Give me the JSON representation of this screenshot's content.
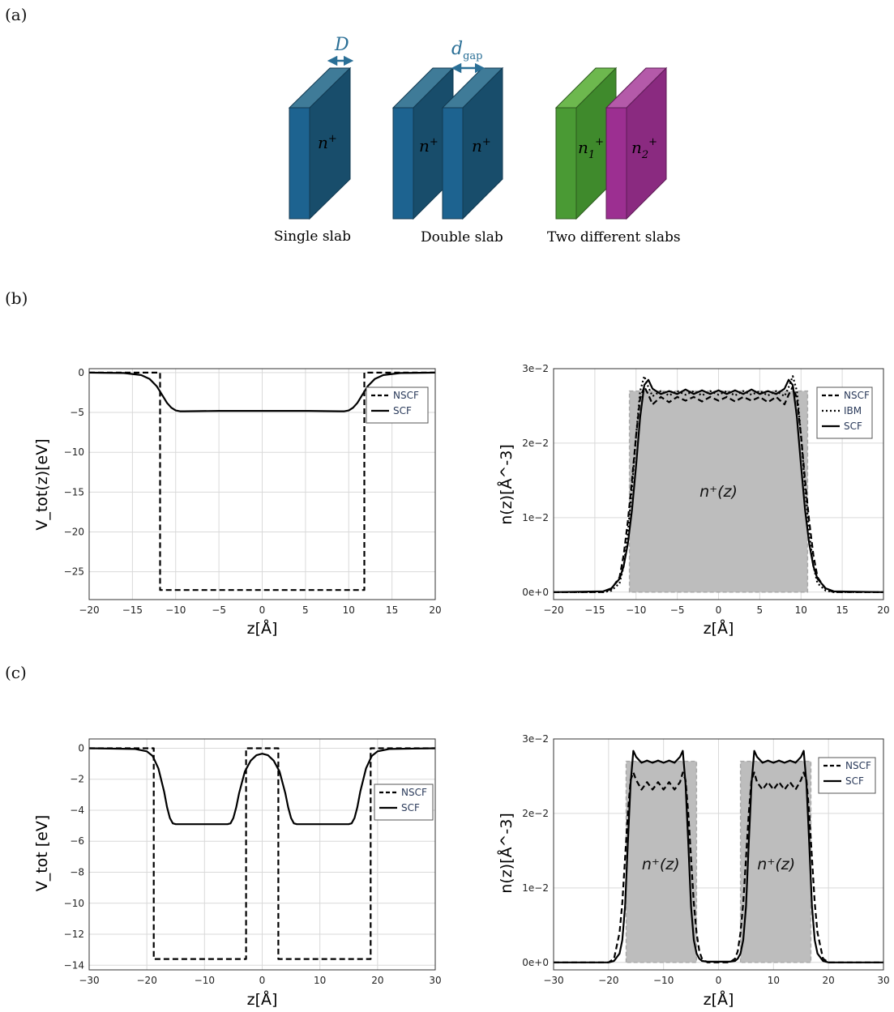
{
  "panel_labels": {
    "a": "(a)",
    "b": "(b)",
    "c": "(c)"
  },
  "schematic": {
    "single": {
      "caption": "Single  slab",
      "label": "n",
      "sup": "+"
    },
    "double": {
      "caption": "Double  slab",
      "label_left": "n",
      "label_right": "n",
      "sup": "+"
    },
    "two": {
      "caption": "Two different slabs",
      "label1": "n",
      "sub1": "1",
      "label2": "n",
      "sub2": "2",
      "sup": "+"
    },
    "D_label": "D",
    "dgap_label": "d",
    "dgap_sub": "gap",
    "colors": {
      "blue": "#1c5a7a",
      "blue_top": "#3f7b98",
      "blue_front": "#1d6390",
      "green": "#4a9a34",
      "green_top": "#6db84e",
      "magenta": "#9c2f91",
      "magenta_top": "#b45aa9",
      "arrow": "#2a6f96"
    }
  },
  "chart_data": [
    {
      "id": "b-left",
      "type": "line",
      "xlabel": "z[Å]",
      "ylabel": "V_tot(z)[eV]",
      "xlim": [
        -20,
        20
      ],
      "ylim": [
        -28.5,
        0.5
      ],
      "xticks": [
        -20,
        -15,
        -10,
        -5,
        0,
        5,
        10,
        15,
        20
      ],
      "yticks": [
        0,
        -5,
        -10,
        -15,
        -20,
        -25
      ],
      "ytick_labels": [
        "0",
        "−5",
        "−10",
        "−15",
        "−20",
        "−25"
      ],
      "xtick_labels": [
        "−20",
        "−15",
        "−10",
        "−5",
        "0",
        "5",
        "10",
        "15",
        "20"
      ],
      "legend": [
        "NSCF",
        "SCF"
      ],
      "legend_position": "top-right",
      "grid": true,
      "series": [
        {
          "name": "NSCF",
          "style": "dashed",
          "x": [
            -20,
            -11.8,
            -11.8,
            11.8,
            11.8,
            20
          ],
          "y": [
            0,
            0,
            -27.3,
            -27.3,
            0,
            0
          ]
        },
        {
          "name": "SCF",
          "style": "solid",
          "x": [
            -20,
            -16,
            -14,
            -13,
            -12.2,
            -11.5,
            -11,
            -10.5,
            -10,
            -9.5,
            -9,
            -5,
            0,
            5,
            9,
            9.5,
            10,
            10.5,
            11,
            11.5,
            12.2,
            13,
            14,
            16,
            20
          ],
          "y": [
            0,
            -0.05,
            -0.3,
            -0.8,
            -1.7,
            -2.9,
            -3.8,
            -4.4,
            -4.75,
            -4.85,
            -4.85,
            -4.8,
            -4.8,
            -4.8,
            -4.85,
            -4.85,
            -4.75,
            -4.4,
            -3.8,
            -2.9,
            -1.7,
            -0.8,
            -0.3,
            -0.05,
            0
          ]
        }
      ]
    },
    {
      "id": "b-right",
      "type": "line",
      "xlabel": "z[Å]",
      "ylabel": "n(z)[Å^-3]",
      "xlim": [
        -20,
        20
      ],
      "ylim": [
        -0.001,
        0.03
      ],
      "xticks": [
        -20,
        -15,
        -10,
        -5,
        0,
        5,
        10,
        15,
        20
      ],
      "xtick_labels": [
        "−20",
        "−15",
        "−10",
        "−5",
        "0",
        "5",
        "10",
        "15",
        "20"
      ],
      "yticks": [
        0,
        0.01,
        0.02,
        0.03
      ],
      "ytick_labels": [
        "0e+0",
        "1e−2",
        "2e−2",
        "3e−2"
      ],
      "legend": [
        "NSCF",
        "IBM",
        "SCF"
      ],
      "legend_position": "top-right",
      "grid": true,
      "shaded_label": "n⁺(z)",
      "shaded": [
        {
          "x": [
            -10.8,
            -10.8,
            10.8,
            10.8
          ],
          "y": [
            0,
            0.027,
            0.027,
            0
          ]
        }
      ],
      "series": [
        {
          "name": "NSCF",
          "style": "dashed",
          "x": [
            -20,
            -14,
            -13,
            -12,
            -11.5,
            -11,
            -10.5,
            -10,
            -9.5,
            -9,
            -8.5,
            -8,
            -7,
            -6,
            -5,
            -4,
            -3,
            -2,
            -1,
            0,
            1,
            2,
            3,
            4,
            5,
            6,
            7,
            8,
            8.5,
            9,
            9.5,
            10,
            10.5,
            11,
            11.5,
            12,
            13,
            14,
            20
          ],
          "y": [
            0,
            0,
            0.0004,
            0.002,
            0.005,
            0.0095,
            0.015,
            0.021,
            0.026,
            0.0276,
            0.0265,
            0.0252,
            0.0262,
            0.0255,
            0.0262,
            0.0257,
            0.0262,
            0.0256,
            0.0262,
            0.0257,
            0.0262,
            0.0256,
            0.0262,
            0.0257,
            0.0262,
            0.0255,
            0.0262,
            0.0252,
            0.0265,
            0.0276,
            0.026,
            0.021,
            0.015,
            0.0095,
            0.005,
            0.002,
            0.0004,
            0,
            0
          ]
        },
        {
          "name": "IBM",
          "style": "dotted",
          "x": [
            -20,
            -14,
            -13,
            -12,
            -11.5,
            -11,
            -10.5,
            -10,
            -9.5,
            -9,
            -8.5,
            -8,
            -7,
            -6,
            -5,
            -4,
            -3,
            -2,
            -1,
            0,
            1,
            2,
            3,
            4,
            5,
            6,
            7,
            8,
            8.5,
            9,
            9.5,
            10,
            10.5,
            11,
            11.5,
            12,
            13,
            14,
            20
          ],
          "y": [
            0,
            0,
            0.0002,
            0.0012,
            0.0035,
            0.008,
            0.014,
            0.021,
            0.027,
            0.029,
            0.0275,
            0.0263,
            0.027,
            0.0264,
            0.027,
            0.0265,
            0.027,
            0.0264,
            0.027,
            0.0265,
            0.027,
            0.0264,
            0.027,
            0.0265,
            0.027,
            0.0264,
            0.027,
            0.0263,
            0.0275,
            0.029,
            0.027,
            0.021,
            0.014,
            0.008,
            0.0035,
            0.0012,
            0.0002,
            0,
            0
          ]
        },
        {
          "name": "SCF",
          "style": "solid",
          "x": [
            -20,
            -14,
            -13,
            -12,
            -11.5,
            -11,
            -10.5,
            -10,
            -9.5,
            -9,
            -8.5,
            -8,
            -7,
            -6,
            -5,
            -4,
            -3,
            -2,
            -1,
            0,
            1,
            2,
            3,
            4,
            5,
            6,
            7,
            8,
            8.5,
            9,
            9.5,
            10,
            10.5,
            11,
            11.5,
            12,
            13,
            14,
            20
          ],
          "y": [
            0,
            0.0001,
            0.0005,
            0.0018,
            0.0035,
            0.0065,
            0.011,
            0.017,
            0.0235,
            0.0278,
            0.0285,
            0.0273,
            0.0266,
            0.027,
            0.0266,
            0.0272,
            0.0266,
            0.0271,
            0.0266,
            0.0271,
            0.0266,
            0.0271,
            0.0266,
            0.0272,
            0.0266,
            0.027,
            0.0266,
            0.0273,
            0.0285,
            0.0278,
            0.0235,
            0.017,
            0.011,
            0.0065,
            0.0035,
            0.0018,
            0.0005,
            0.0001,
            0
          ]
        }
      ]
    },
    {
      "id": "c-left",
      "type": "line",
      "xlabel": "z[Å]",
      "ylabel": "V_tot [eV]",
      "xlim": [
        -30,
        30
      ],
      "ylim": [
        -14.3,
        0.6
      ],
      "xticks": [
        -30,
        -20,
        -10,
        0,
        10,
        20,
        30
      ],
      "xtick_labels": [
        "−30",
        "−20",
        "−10",
        "0",
        "10",
        "20",
        "30"
      ],
      "yticks": [
        0,
        -2,
        -4,
        -6,
        -8,
        -10,
        -12,
        -14
      ],
      "ytick_labels": [
        "0",
        "−2",
        "−4",
        "−6",
        "−8",
        "−10",
        "−12",
        "−14"
      ],
      "legend": [
        "NSCF",
        "SCF"
      ],
      "legend_position": "right",
      "grid": true,
      "series": [
        {
          "name": "NSCF",
          "style": "dashed",
          "x": [
            -30,
            -18.8,
            -18.8,
            -2.8,
            -2.8,
            2.8,
            2.8,
            18.8,
            18.8,
            30
          ],
          "y": [
            0,
            0,
            -13.6,
            -13.6,
            0,
            0,
            -13.6,
            -13.6,
            0,
            0
          ]
        },
        {
          "name": "SCF",
          "style": "solid",
          "x": [
            -30,
            -22,
            -20,
            -19,
            -18,
            -17,
            -16.5,
            -16,
            -15.5,
            -15,
            -12,
            -8,
            -6,
            -5.5,
            -5,
            -4.5,
            -4,
            -3,
            -2,
            -1,
            0,
            1,
            2,
            3,
            4,
            4.5,
            5,
            5.5,
            6,
            8,
            12,
            15,
            15.5,
            16,
            16.5,
            17,
            18,
            19,
            20,
            22,
            30
          ],
          "y": [
            0,
            -0.05,
            -0.2,
            -0.5,
            -1.3,
            -2.8,
            -3.8,
            -4.5,
            -4.85,
            -4.9,
            -4.9,
            -4.9,
            -4.9,
            -4.85,
            -4.5,
            -3.8,
            -2.9,
            -1.5,
            -0.8,
            -0.45,
            -0.35,
            -0.45,
            -0.8,
            -1.5,
            -2.9,
            -3.8,
            -4.5,
            -4.85,
            -4.9,
            -4.9,
            -4.9,
            -4.9,
            -4.85,
            -4.5,
            -3.8,
            -2.8,
            -1.3,
            -0.5,
            -0.2,
            -0.05,
            0
          ]
        }
      ]
    },
    {
      "id": "c-right",
      "type": "line",
      "xlabel": "z[Å]",
      "ylabel": "n(z)[Å^-3]",
      "xlim": [
        -30,
        30
      ],
      "ylim": [
        -0.001,
        0.03
      ],
      "xticks": [
        -30,
        -20,
        -10,
        0,
        10,
        20,
        30
      ],
      "xtick_labels": [
        "−30",
        "−20",
        "−10",
        "0",
        "10",
        "20",
        "30"
      ],
      "yticks": [
        0,
        0.01,
        0.02,
        0.03
      ],
      "ytick_labels": [
        "0e+0",
        "1e−2",
        "2e−2",
        "3e−2"
      ],
      "legend": [
        "NSCF",
        "SCF"
      ],
      "legend_position": "top-right",
      "grid": true,
      "shaded_label": "n⁺(z)",
      "shaded": [
        {
          "x": [
            -16.8,
            -16.8,
            -4,
            -4
          ],
          "y": [
            0,
            0.027,
            0.027,
            0
          ]
        },
        {
          "x": [
            4,
            4,
            16.8,
            16.8
          ],
          "y": [
            0,
            0.027,
            0.027,
            0
          ]
        }
      ],
      "series": [
        {
          "name": "NSCF",
          "style": "dashed",
          "x": [
            -30,
            -20,
            -19,
            -18,
            -17.5,
            -17,
            -16.5,
            -16,
            -15.5,
            -15,
            -14,
            -13,
            -12,
            -11,
            -10,
            -9,
            -8,
            -7,
            -6.5,
            -6,
            -5.5,
            -5,
            -4.5,
            -4,
            -3.5,
            -3,
            -2,
            0,
            2,
            3,
            3.5,
            4,
            4.5,
            5,
            5.5,
            6,
            6.5,
            7,
            8,
            9,
            10,
            11,
            12,
            13,
            14,
            15,
            15.5,
            16,
            16.5,
            17,
            17.5,
            18,
            19,
            20,
            30
          ],
          "y": [
            0,
            0,
            0.0005,
            0.004,
            0.008,
            0.014,
            0.02,
            0.0245,
            0.0255,
            0.0245,
            0.0232,
            0.0242,
            0.0232,
            0.0242,
            0.0232,
            0.0242,
            0.0232,
            0.0242,
            0.0255,
            0.0245,
            0.02,
            0.014,
            0.008,
            0.004,
            0.0015,
            0.0005,
            0,
            0,
            0,
            0.0005,
            0.0015,
            0.004,
            0.008,
            0.014,
            0.02,
            0.0245,
            0.0255,
            0.0242,
            0.0232,
            0.0242,
            0.0232,
            0.0242,
            0.0232,
            0.0242,
            0.0232,
            0.0245,
            0.0255,
            0.0245,
            0.02,
            0.014,
            0.008,
            0.004,
            0.0005,
            0,
            0
          ]
        },
        {
          "name": "SCF",
          "style": "solid",
          "x": [
            -30,
            -20,
            -19,
            -18,
            -17.5,
            -17,
            -16.5,
            -16,
            -15.5,
            -15,
            -14,
            -13,
            -12,
            -11,
            -10,
            -9,
            -8,
            -7,
            -6.5,
            -6,
            -5.5,
            -5,
            -4.5,
            -4,
            -3.5,
            -3,
            -2,
            -1,
            0,
            1,
            2,
            3,
            3.5,
            4,
            4.5,
            5,
            5.5,
            6,
            6.5,
            7,
            8,
            9,
            10,
            11,
            12,
            13,
            14,
            15,
            15.5,
            16,
            16.5,
            17,
            17.5,
            18,
            19,
            20,
            30
          ],
          "y": [
            0,
            0,
            0.0002,
            0.0012,
            0.003,
            0.0075,
            0.016,
            0.024,
            0.0284,
            0.0276,
            0.0268,
            0.0271,
            0.0268,
            0.0271,
            0.0268,
            0.0271,
            0.0268,
            0.0276,
            0.0284,
            0.024,
            0.016,
            0.0075,
            0.003,
            0.0012,
            0.0005,
            0.0002,
            0.0001,
            0.0001,
            0.0001,
            0.0001,
            0.0001,
            0.0002,
            0.0005,
            0.0012,
            0.003,
            0.0075,
            0.016,
            0.024,
            0.0284,
            0.0276,
            0.0268,
            0.0271,
            0.0268,
            0.0271,
            0.0268,
            0.0271,
            0.0268,
            0.0276,
            0.0284,
            0.024,
            0.016,
            0.0075,
            0.003,
            0.0012,
            0.0002,
            0,
            0
          ]
        }
      ]
    }
  ]
}
